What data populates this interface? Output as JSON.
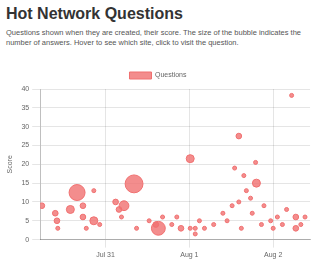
{
  "chart_data": {
    "type": "bubble",
    "title": "Hot Network Questions",
    "subtitle": "Questions shown when they are created, their score. The size of the bubble indicates the number of answers. Hover to see which site, click to visit the question.",
    "y_label": "Score",
    "x": [
      30.24,
      30.4,
      30.42,
      30.43,
      30.58,
      30.66,
      30.73,
      30.73,
      30.77,
      30.86,
      30.86,
      30.93,
      31.12,
      31.16,
      31.22,
      31.34,
      31.19,
      31.37,
      31.52,
      31.63,
      31.6,
      31.68,
      31.79,
      31.85,
      31.9,
      32.01,
      32.01,
      32.07,
      32.12,
      32.18,
      32.29,
      32.4,
      32.45,
      32.51,
      32.54,
      32.59,
      32.59,
      32.65,
      32.68,
      32.73,
      32.79,
      32.8,
      32.75,
      32.86,
      32.89,
      32.97,
      33.0,
      33.05,
      33.11,
      33.16,
      33.22,
      33.27,
      33.33,
      33.38,
      33.27,
      32.62,
      32.07
    ],
    "series": [
      {
        "name": "Questions",
        "color": "#f07070",
        "values": [
          9,
          7,
          5,
          3,
          8,
          12.5,
          9,
          6,
          3,
          13,
          5,
          4,
          10,
          8,
          9,
          14.8,
          6,
          3,
          5,
          3,
          4,
          6,
          4,
          6,
          3,
          21.5,
          3,
          3,
          5,
          3,
          4,
          7,
          5,
          9,
          19,
          27.5,
          10,
          17,
          13,
          11,
          20.5,
          15,
          7,
          4,
          9,
          5,
          3,
          6,
          4,
          8,
          38.3,
          6,
          4,
          6,
          3,
          3,
          1.5
        ],
        "answers": [
          2,
          2,
          2,
          1,
          4,
          16,
          2,
          2,
          1,
          1,
          4,
          1,
          2,
          2,
          6,
          20,
          1,
          1,
          1,
          12,
          2,
          1,
          1,
          1,
          2,
          4,
          1,
          1,
          1,
          1,
          1,
          1,
          1,
          1,
          1,
          2,
          1,
          1,
          1,
          1,
          1,
          4,
          1,
          1,
          1,
          1,
          1,
          1,
          1,
          1,
          1,
          2,
          1,
          1,
          2,
          1,
          1
        ]
      }
    ],
    "xlim": [
      30.22,
      33.44
    ],
    "xticks": [
      {
        "value": 31,
        "label": "Jul 31"
      },
      {
        "value": 32,
        "label": "Aug 1"
      },
      {
        "value": 33,
        "label": "Aug 2"
      }
    ],
    "ylim": [
      0,
      40
    ],
    "yticks": [
      0,
      5,
      10,
      15,
      20,
      25,
      30,
      35,
      40
    ],
    "grid": true,
    "legend": "top"
  }
}
